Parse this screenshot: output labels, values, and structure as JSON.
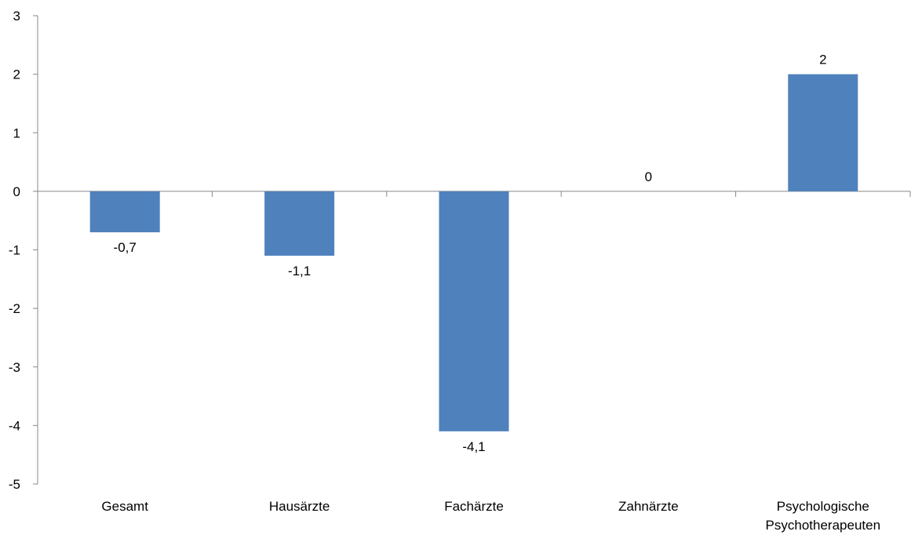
{
  "chart_data": {
    "type": "bar",
    "title": "",
    "xlabel": "",
    "ylabel": "",
    "categories": [
      [
        "Gesamt"
      ],
      [
        "Hausärzte"
      ],
      [
        "Fachärzte"
      ],
      [
        "Zahnärzte"
      ],
      [
        "Psychologische",
        "Psychotherapeuten"
      ]
    ],
    "values": [
      -0.7,
      -1.1,
      -4.1,
      0,
      2
    ],
    "data_labels": [
      "-0,7",
      "-1,1",
      "-4,1",
      "0",
      "2"
    ],
    "ylim": [
      -5,
      3
    ],
    "yticks": [
      3,
      2,
      1,
      0,
      -1,
      -2,
      -3,
      -4,
      -5
    ],
    "ytick_labels": [
      "3",
      "2",
      "1",
      "0",
      "-1",
      "-2",
      "-3",
      "-4",
      "-5"
    ],
    "grid": false,
    "legend": "none",
    "bar_color": "#4f81bd",
    "axis_color": "#888888"
  }
}
